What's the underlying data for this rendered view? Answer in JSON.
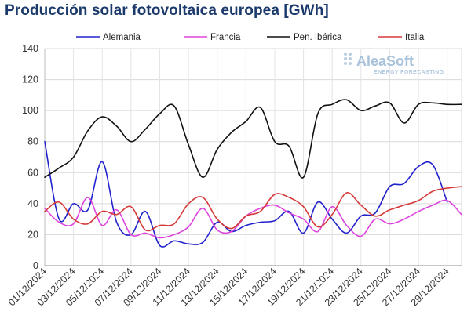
{
  "chart_data": {
    "type": "line",
    "title": "Producción solar fotovoltaica europea [GWh]",
    "x": [
      "01/12/2024",
      "02/12/2024",
      "03/12/2024",
      "04/12/2024",
      "05/12/2024",
      "06/12/2024",
      "07/12/2024",
      "08/12/2024",
      "09/12/2024",
      "10/12/2024",
      "11/12/2024",
      "12/12/2024",
      "13/12/2024",
      "14/12/2024",
      "15/12/2024",
      "16/12/2024",
      "17/12/2024",
      "18/12/2024",
      "19/12/2024",
      "20/12/2024",
      "21/12/2024",
      "22/12/2024",
      "23/12/2024",
      "24/12/2024",
      "25/12/2024",
      "26/12/2024",
      "27/12/2024",
      "28/12/2024",
      "29/12/2024",
      "30/12/2024"
    ],
    "x_tick_labels": [
      "01/12/2024",
      "03/12/2024",
      "05/12/2024",
      "07/12/2024",
      "09/12/2024",
      "11/12/2024",
      "13/12/2024",
      "15/12/2024",
      "17/12/2024",
      "19/12/2024",
      "21/12/2024",
      "23/12/2024",
      "25/12/2024",
      "27/12/2024",
      "29/12/2024"
    ],
    "series": [
      {
        "name": "Alemania",
        "color": "#2222cc",
        "values": [
          80,
          30,
          40,
          36,
          67,
          28,
          20,
          35,
          13,
          16,
          14,
          15,
          28,
          22,
          26,
          28,
          29,
          35,
          21,
          41,
          30,
          21,
          32,
          34,
          51,
          53,
          64,
          65,
          41,
          null
        ]
      },
      {
        "name": "Francia",
        "color": "#dd44dd",
        "values": [
          37,
          28,
          27,
          44,
          26,
          36,
          20,
          21,
          18,
          20,
          25,
          37,
          23,
          22,
          32,
          37,
          39,
          34,
          30,
          22,
          38,
          26,
          19,
          30,
          27,
          30,
          35,
          39,
          42,
          33
        ]
      },
      {
        "name": "Pen. Ibérica",
        "color": "#111111",
        "values": [
          57,
          63,
          70,
          87,
          96,
          90,
          80,
          88,
          98,
          103,
          78,
          57,
          75,
          86,
          93,
          102,
          80,
          77,
          57,
          98,
          104,
          107,
          100,
          103,
          105,
          92,
          104,
          105,
          104,
          104
        ]
      },
      {
        "name": "Italia",
        "color": "#d63a3a",
        "values": [
          35,
          41,
          30,
          27,
          35,
          33,
          38,
          23,
          26,
          27,
          40,
          44,
          30,
          24,
          32,
          35,
          46,
          44,
          38,
          25,
          33,
          47,
          39,
          32,
          36,
          39,
          42,
          48,
          50,
          51
        ]
      }
    ],
    "ylim": [
      0,
      140
    ],
    "yticks": [
      0,
      20,
      40,
      60,
      80,
      100,
      120,
      140
    ],
    "grid": true,
    "legend_position": "top"
  },
  "logo": {
    "name": "AleaSoft",
    "tagline": "ENERGY FORECASTING"
  }
}
